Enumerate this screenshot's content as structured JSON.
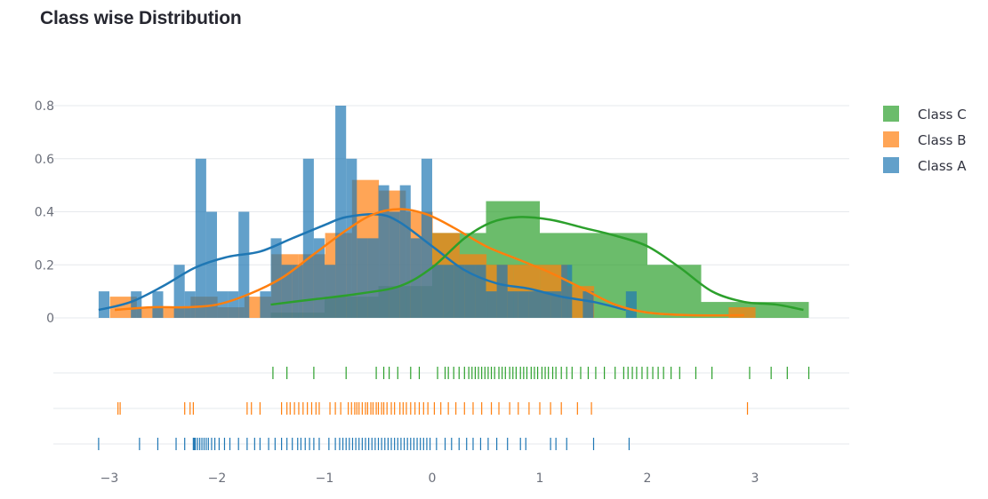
{
  "chart_data": {
    "type": "histogram",
    "title": "Class wise Distribution",
    "xlabel": "",
    "ylabel": "",
    "xlim": [
      -3.3,
      3.7
    ],
    "ylim": [
      0,
      0.8
    ],
    "x_ticks": [
      -3,
      -2,
      -1,
      0,
      1,
      2,
      3
    ],
    "x_tick_labels": [
      "−3",
      "−2",
      "−1",
      "0",
      "1",
      "2",
      "3"
    ],
    "y_ticks": [
      0,
      0.2,
      0.4,
      0.6,
      0.8
    ],
    "y_tick_labels": [
      "0",
      "0.2",
      "0.4",
      "0.6",
      "0.8"
    ],
    "grid": true,
    "legend_position": "right",
    "series": [
      {
        "name": "Class A",
        "color": "#1f77b4",
        "bin_width": 0.1,
        "bins": [
          {
            "x": -3.05,
            "y": 0.1
          },
          {
            "x": -2.75,
            "y": 0.1
          },
          {
            "x": -2.55,
            "y": 0.1
          },
          {
            "x": -2.35,
            "y": 0.2
          },
          {
            "x": -2.25,
            "y": 0.1
          },
          {
            "x": -2.15,
            "y": 0.6
          },
          {
            "x": -2.05,
            "y": 0.4
          },
          {
            "x": -1.95,
            "y": 0.1
          },
          {
            "x": -1.85,
            "y": 0.1
          },
          {
            "x": -1.75,
            "y": 0.4
          },
          {
            "x": -1.55,
            "y": 0.1
          },
          {
            "x": -1.45,
            "y": 0.3
          },
          {
            "x": -1.35,
            "y": 0.2
          },
          {
            "x": -1.25,
            "y": 0.2
          },
          {
            "x": -1.15,
            "y": 0.6
          },
          {
            "x": -1.05,
            "y": 0.3
          },
          {
            "x": -0.95,
            "y": 0.2
          },
          {
            "x": -0.85,
            "y": 0.8
          },
          {
            "x": -0.75,
            "y": 0.6
          },
          {
            "x": -0.65,
            "y": 0.3
          },
          {
            "x": -0.55,
            "y": 0.3
          },
          {
            "x": -0.45,
            "y": 0.5
          },
          {
            "x": -0.35,
            "y": 0.4
          },
          {
            "x": -0.25,
            "y": 0.5
          },
          {
            "x": -0.15,
            "y": 0.3
          },
          {
            "x": -0.05,
            "y": 0.6
          },
          {
            "x": 0.05,
            "y": 0.2
          },
          {
            "x": 0.15,
            "y": 0.2
          },
          {
            "x": 0.25,
            "y": 0.2
          },
          {
            "x": 0.35,
            "y": 0.2
          },
          {
            "x": 0.45,
            "y": 0.2
          },
          {
            "x": 0.55,
            "y": 0.1
          },
          {
            "x": 0.65,
            "y": 0.2
          },
          {
            "x": 0.75,
            "y": 0.1
          },
          {
            "x": 0.85,
            "y": 0.1
          },
          {
            "x": 0.95,
            "y": 0.1
          },
          {
            "x": 1.05,
            "y": 0.1
          },
          {
            "x": 1.15,
            "y": 0.1
          },
          {
            "x": 1.25,
            "y": 0.2
          },
          {
            "x": 1.45,
            "y": 0.1
          },
          {
            "x": 1.85,
            "y": 0.1
          }
        ],
        "kde": [
          [
            -3.1,
            0.03
          ],
          [
            -2.8,
            0.06
          ],
          [
            -2.5,
            0.12
          ],
          [
            -2.2,
            0.19
          ],
          [
            -1.9,
            0.23
          ],
          [
            -1.6,
            0.25
          ],
          [
            -1.3,
            0.3
          ],
          [
            -1.0,
            0.35
          ],
          [
            -0.8,
            0.38
          ],
          [
            -0.5,
            0.39
          ],
          [
            -0.3,
            0.36
          ],
          [
            0.0,
            0.27
          ],
          [
            0.3,
            0.18
          ],
          [
            0.6,
            0.13
          ],
          [
            0.9,
            0.11
          ],
          [
            1.2,
            0.08
          ],
          [
            1.5,
            0.06
          ],
          [
            1.8,
            0.03
          ]
        ],
        "rug": [
          -3.1,
          -2.72,
          -2.55,
          -2.38,
          -2.3,
          -2.22,
          -2.21,
          -2.2,
          -2.18,
          -2.16,
          -2.14,
          -2.12,
          -2.1,
          -2.08,
          -2.05,
          -2.02,
          -1.98,
          -1.93,
          -1.88,
          -1.8,
          -1.72,
          -1.65,
          -1.6,
          -1.52,
          -1.46,
          -1.4,
          -1.35,
          -1.3,
          -1.25,
          -1.22,
          -1.18,
          -1.14,
          -1.1,
          -1.05,
          -0.96,
          -0.9,
          -0.86,
          -0.83,
          -0.8,
          -0.77,
          -0.74,
          -0.71,
          -0.68,
          -0.65,
          -0.62,
          -0.59,
          -0.56,
          -0.53,
          -0.5,
          -0.47,
          -0.44,
          -0.41,
          -0.38,
          -0.35,
          -0.32,
          -0.29,
          -0.26,
          -0.23,
          -0.2,
          -0.17,
          -0.14,
          -0.11,
          -0.08,
          -0.05,
          -0.02,
          0.04,
          0.12,
          0.18,
          0.25,
          0.32,
          0.38,
          0.45,
          0.52,
          0.6,
          0.7,
          0.82,
          0.87,
          1.1,
          1.15,
          1.25,
          1.5,
          1.83
        ]
      },
      {
        "name": "Class B",
        "color": "#ff7f0e",
        "bin_width": 0.25,
        "bins": [
          {
            "x": -2.87,
            "y": 0.08
          },
          {
            "x": -2.62,
            "y": 0.04
          },
          {
            "x": -2.37,
            "y": 0.04
          },
          {
            "x": -2.12,
            "y": 0.08
          },
          {
            "x": -1.87,
            "y": 0.04
          },
          {
            "x": -1.62,
            "y": 0.08
          },
          {
            "x": -1.37,
            "y": 0.24
          },
          {
            "x": -1.12,
            "y": 0.24
          },
          {
            "x": -0.87,
            "y": 0.32
          },
          {
            "x": -0.62,
            "y": 0.52
          },
          {
            "x": -0.37,
            "y": 0.48
          },
          {
            "x": -0.12,
            "y": 0.4
          },
          {
            "x": 0.13,
            "y": 0.32
          },
          {
            "x": 0.38,
            "y": 0.24
          },
          {
            "x": 0.63,
            "y": 0.2
          },
          {
            "x": 0.88,
            "y": 0.2
          },
          {
            "x": 1.13,
            "y": 0.2
          },
          {
            "x": 1.38,
            "y": 0.12
          },
          {
            "x": 2.88,
            "y": 0.04
          }
        ],
        "kde": [
          [
            -2.95,
            0.03
          ],
          [
            -2.6,
            0.04
          ],
          [
            -2.3,
            0.04
          ],
          [
            -2.0,
            0.05
          ],
          [
            -1.7,
            0.09
          ],
          [
            -1.4,
            0.15
          ],
          [
            -1.1,
            0.24
          ],
          [
            -0.8,
            0.33
          ],
          [
            -0.55,
            0.39
          ],
          [
            -0.3,
            0.41
          ],
          [
            -0.05,
            0.39
          ],
          [
            0.2,
            0.34
          ],
          [
            0.5,
            0.27
          ],
          [
            0.8,
            0.22
          ],
          [
            1.1,
            0.17
          ],
          [
            1.4,
            0.11
          ],
          [
            1.7,
            0.05
          ],
          [
            2.0,
            0.02
          ],
          [
            2.4,
            0.01
          ],
          [
            2.9,
            0.01
          ]
        ],
        "rug": [
          -2.92,
          -2.9,
          -2.3,
          -2.25,
          -2.22,
          -1.72,
          -1.68,
          -1.6,
          -1.4,
          -1.35,
          -1.32,
          -1.28,
          -1.24,
          -1.2,
          -1.16,
          -1.12,
          -1.08,
          -1.05,
          -0.95,
          -0.9,
          -0.85,
          -0.78,
          -0.75,
          -0.72,
          -0.7,
          -0.68,
          -0.65,
          -0.62,
          -0.6,
          -0.57,
          -0.55,
          -0.52,
          -0.5,
          -0.47,
          -0.45,
          -0.42,
          -0.38,
          -0.35,
          -0.3,
          -0.27,
          -0.24,
          -0.2,
          -0.16,
          -0.12,
          -0.08,
          -0.04,
          0.02,
          0.08,
          0.15,
          0.22,
          0.3,
          0.38,
          0.46,
          0.55,
          0.62,
          0.72,
          0.8,
          0.9,
          1.0,
          1.1,
          1.2,
          1.35,
          1.48,
          2.93
        ]
      },
      {
        "name": "Class C",
        "color": "#2ca02c",
        "bin_width": 0.5,
        "bins": [
          {
            "x": -1.25,
            "y": 0.02
          },
          {
            "x": -0.75,
            "y": 0.08
          },
          {
            "x": -0.25,
            "y": 0.12
          },
          {
            "x": 0.25,
            "y": 0.32
          },
          {
            "x": 0.75,
            "y": 0.44
          },
          {
            "x": 1.25,
            "y": 0.32
          },
          {
            "x": 1.75,
            "y": 0.32
          },
          {
            "x": 2.25,
            "y": 0.2
          },
          {
            "x": 2.75,
            "y": 0.06
          },
          {
            "x": 3.25,
            "y": 0.06
          }
        ],
        "kde": [
          [
            -1.5,
            0.05
          ],
          [
            -1.1,
            0.07
          ],
          [
            -0.7,
            0.09
          ],
          [
            -0.3,
            0.12
          ],
          [
            0.0,
            0.19
          ],
          [
            0.3,
            0.3
          ],
          [
            0.55,
            0.36
          ],
          [
            0.8,
            0.38
          ],
          [
            1.1,
            0.37
          ],
          [
            1.4,
            0.34
          ],
          [
            1.7,
            0.31
          ],
          [
            2.0,
            0.27
          ],
          [
            2.3,
            0.19
          ],
          [
            2.6,
            0.1
          ],
          [
            2.9,
            0.06
          ],
          [
            3.2,
            0.05
          ],
          [
            3.45,
            0.03
          ]
        ],
        "rug": [
          -1.48,
          -1.35,
          -1.1,
          -0.8,
          -0.52,
          -0.45,
          -0.4,
          -0.32,
          -0.2,
          -0.12,
          0.05,
          0.12,
          0.15,
          0.2,
          0.25,
          0.3,
          0.34,
          0.37,
          0.4,
          0.43,
          0.46,
          0.49,
          0.52,
          0.55,
          0.58,
          0.62,
          0.65,
          0.68,
          0.72,
          0.75,
          0.78,
          0.82,
          0.85,
          0.88,
          0.92,
          0.95,
          0.98,
          1.02,
          1.05,
          1.08,
          1.12,
          1.15,
          1.2,
          1.25,
          1.3,
          1.38,
          1.45,
          1.52,
          1.6,
          1.7,
          1.78,
          1.82,
          1.86,
          1.9,
          1.95,
          2.0,
          2.05,
          2.1,
          2.15,
          2.22,
          2.3,
          2.45,
          2.6,
          2.95,
          3.15,
          3.3,
          3.5
        ]
      }
    ]
  }
}
